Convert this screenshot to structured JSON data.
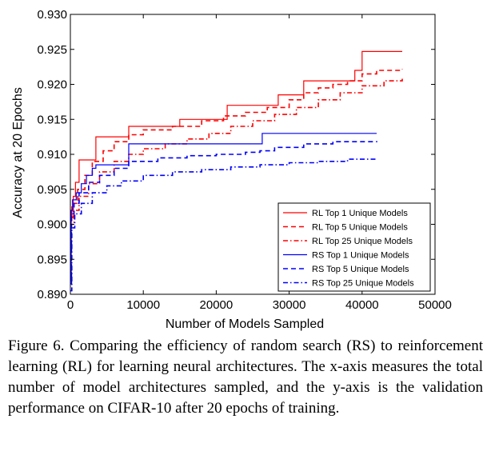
{
  "chart_data": {
    "type": "line",
    "title": "",
    "xlabel": "Number of Models Sampled",
    "ylabel": "Accuracy at 20 Epochs",
    "xlim": [
      0,
      50000
    ],
    "ylim": [
      0.89,
      0.93
    ],
    "xticks": [
      0,
      10000,
      20000,
      30000,
      40000,
      50000
    ],
    "yticks": [
      0.89,
      0.895,
      0.9,
      0.905,
      0.91,
      0.915,
      0.92,
      0.925,
      0.93
    ],
    "xtick_labels": [
      "0",
      "10000",
      "20000",
      "30000",
      "40000",
      "50000"
    ],
    "ytick_labels": [
      "0.890",
      "0.895",
      "0.900",
      "0.905",
      "0.910",
      "0.915",
      "0.920",
      "0.925",
      "0.930"
    ],
    "grid": false,
    "legend_position": "lower-right",
    "series": [
      {
        "name": "RL Top 1 Unique Models",
        "color": "#ff0000",
        "style": "solid",
        "points": [
          [
            0,
            0.8935
          ],
          [
            80,
            0.9005
          ],
          [
            200,
            0.9025
          ],
          [
            400,
            0.904
          ],
          [
            700,
            0.906
          ],
          [
            1200,
            0.9092
          ],
          [
            3500,
            0.9125
          ],
          [
            8000,
            0.914
          ],
          [
            15000,
            0.915
          ],
          [
            21500,
            0.917
          ],
          [
            28500,
            0.9185
          ],
          [
            32000,
            0.9205
          ],
          [
            36000,
            0.9205
          ],
          [
            39000,
            0.922
          ],
          [
            40000,
            0.9247
          ],
          [
            45500,
            0.9247
          ]
        ]
      },
      {
        "name": "RL Top 5 Unique Models",
        "color": "#ff0000",
        "style": "dashed",
        "points": [
          [
            0,
            0.893
          ],
          [
            100,
            0.901
          ],
          [
            400,
            0.903
          ],
          [
            1000,
            0.905
          ],
          [
            2000,
            0.907
          ],
          [
            3000,
            0.909
          ],
          [
            4500,
            0.9105
          ],
          [
            6000,
            0.9118
          ],
          [
            8000,
            0.9128
          ],
          [
            10000,
            0.9135
          ],
          [
            14000,
            0.914
          ],
          [
            18000,
            0.9148
          ],
          [
            21000,
            0.9155
          ],
          [
            24000,
            0.916
          ],
          [
            27000,
            0.9167
          ],
          [
            30000,
            0.9178
          ],
          [
            32000,
            0.9188
          ],
          [
            34000,
            0.9195
          ],
          [
            36000,
            0.92
          ],
          [
            38000,
            0.9205
          ],
          [
            40000,
            0.9215
          ],
          [
            42000,
            0.922
          ],
          [
            45500,
            0.9222
          ]
        ]
      },
      {
        "name": "RL Top 25 Unique Models",
        "color": "#ff0000",
        "style": "dashdot",
        "points": [
          [
            0,
            0.892
          ],
          [
            150,
            0.9
          ],
          [
            500,
            0.902
          ],
          [
            1200,
            0.904
          ],
          [
            2500,
            0.9058
          ],
          [
            4000,
            0.9075
          ],
          [
            6000,
            0.909
          ],
          [
            8000,
            0.91
          ],
          [
            10000,
            0.9108
          ],
          [
            13000,
            0.9115
          ],
          [
            16000,
            0.9122
          ],
          [
            19000,
            0.913
          ],
          [
            22000,
            0.914
          ],
          [
            25000,
            0.9148
          ],
          [
            28000,
            0.9157
          ],
          [
            31000,
            0.9167
          ],
          [
            34000,
            0.9178
          ],
          [
            37000,
            0.9188
          ],
          [
            40000,
            0.9198
          ],
          [
            43000,
            0.9205
          ],
          [
            45500,
            0.9208
          ]
        ]
      },
      {
        "name": "RS Top 1 Unique Models",
        "color": "#0000ff",
        "style": "solid",
        "points": [
          [
            0,
            0.892
          ],
          [
            100,
            0.902
          ],
          [
            300,
            0.9035
          ],
          [
            800,
            0.9045
          ],
          [
            1500,
            0.9058
          ],
          [
            2200,
            0.907
          ],
          [
            3000,
            0.908
          ],
          [
            3500,
            0.9085
          ],
          [
            7500,
            0.9085
          ],
          [
            8000,
            0.9115
          ],
          [
            26000,
            0.9115
          ],
          [
            26300,
            0.913
          ],
          [
            42000,
            0.913
          ]
        ]
      },
      {
        "name": "RS Top 5 Unique Models",
        "color": "#0000ff",
        "style": "dashed",
        "points": [
          [
            0,
            0.8915
          ],
          [
            150,
            0.9015
          ],
          [
            500,
            0.903
          ],
          [
            1200,
            0.9045
          ],
          [
            2500,
            0.906
          ],
          [
            4000,
            0.907
          ],
          [
            6000,
            0.908
          ],
          [
            8000,
            0.909
          ],
          [
            12000,
            0.9095
          ],
          [
            16000,
            0.9098
          ],
          [
            20000,
            0.91
          ],
          [
            24000,
            0.9103
          ],
          [
            26000,
            0.9105
          ],
          [
            28000,
            0.911
          ],
          [
            32000,
            0.9115
          ],
          [
            36000,
            0.9118
          ],
          [
            42000,
            0.9119
          ]
        ]
      },
      {
        "name": "RS Top 25 Unique Models",
        "color": "#0000ff",
        "style": "dashdot",
        "points": [
          [
            0,
            0.8905
          ],
          [
            200,
            0.8995
          ],
          [
            600,
            0.9015
          ],
          [
            1500,
            0.903
          ],
          [
            3000,
            0.9045
          ],
          [
            5000,
            0.9055
          ],
          [
            7000,
            0.9062
          ],
          [
            10000,
            0.907
          ],
          [
            14000,
            0.9075
          ],
          [
            18000,
            0.9078
          ],
          [
            22000,
            0.9082
          ],
          [
            26000,
            0.9085
          ],
          [
            30000,
            0.9088
          ],
          [
            34000,
            0.909
          ],
          [
            38000,
            0.9093
          ],
          [
            42000,
            0.9094
          ]
        ]
      }
    ]
  },
  "caption": "Figure 6. Comparing the efficiency of random search (RS) to reinforcement learning (RL) for learning neural architectures. The x-axis measures the total number of model architectures sampled, and the y-axis is the validation performance on CIFAR-10 after 20 epochs of training."
}
